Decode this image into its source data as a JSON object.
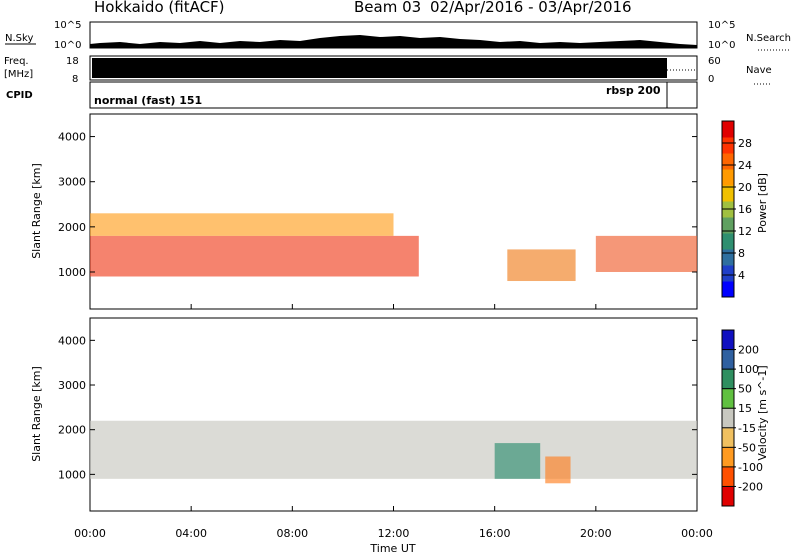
{
  "header": {
    "station": "Hokkaido (fitACF)",
    "beam": "Beam 03",
    "dates": "02/Apr/2016 - 03/Apr/2016"
  },
  "aux_panels": {
    "nsky_label": "N.Sky",
    "nsky_ticks": [
      "10^5",
      "10^0"
    ],
    "nsearch_label": "N.Search",
    "freq_label": "Freq.",
    "freq_unit": "[MHz]",
    "freq_ticks": [
      "18",
      "8"
    ],
    "nave_ticks": [
      "60",
      "0"
    ],
    "nave_label": "Nave",
    "cpid_label": "CPID",
    "cpid_left": "normal (fast) 151",
    "cpid_right": "rbsp 200"
  },
  "chart_data": [
    {
      "type": "heatmap",
      "title": "",
      "ylabel": "Slant Range [km]",
      "ylim": [
        180,
        4500
      ],
      "yticks": [
        "4000",
        "3000",
        "2000",
        "1000"
      ],
      "colorbar": {
        "label": "Power [dB]",
        "ticks": [
          "28",
          "24",
          "20",
          "16",
          "12",
          "8",
          "4"
        ],
        "colors": [
          "#0000ff",
          "#1f3fc8",
          "#2f6f9f",
          "#2f8f70",
          "#5fa060",
          "#a0c040",
          "#f0c000",
          "#ff9a00",
          "#ff6600",
          "#ff3300",
          "#e00000"
        ]
      },
      "bands": [
        {
          "start_hr": 0,
          "end_hr": 13,
          "from_km": 900,
          "to_km": 1800,
          "level": "high",
          "color": "#f04020"
        },
        {
          "start_hr": 0,
          "end_hr": 12,
          "from_km": 1800,
          "to_km": 2300,
          "level": "medium",
          "color": "#ffa020"
        },
        {
          "start_hr": 16.5,
          "end_hr": 19.2,
          "from_km": 800,
          "to_km": 1500,
          "level": "mixed",
          "color": "#f08020"
        },
        {
          "start_hr": 20,
          "end_hr": 24,
          "from_km": 1000,
          "to_km": 1800,
          "level": "medium",
          "color": "#f06030"
        }
      ]
    },
    {
      "type": "heatmap",
      "title": "",
      "ylabel": "Slant Range [km]",
      "ylim": [
        180,
        4500
      ],
      "yticks": [
        "4000",
        "3000",
        "2000",
        "1000"
      ],
      "xlabel": "Time UT",
      "xticks": [
        "00:00",
        "04:00",
        "08:00",
        "12:00",
        "16:00",
        "20:00",
        "00:00"
      ],
      "colorbar": {
        "label": "Velocity [m s^-1]",
        "ticks": [
          "200",
          "100",
          "50",
          "15",
          "-15",
          "-50",
          "-100",
          "-200"
        ],
        "colors": [
          "#e00000",
          "#ff5000",
          "#ff9a20",
          "#f0c060",
          "#c8c8c0",
          "#60c040",
          "#2f8f60",
          "#2f60a0",
          "#1010c0"
        ]
      },
      "bands": [
        {
          "start_hr": 0,
          "end_hr": 24,
          "from_km": 900,
          "to_km": 2200,
          "level": "near zero",
          "color": "#c8c8c0"
        },
        {
          "start_hr": 16,
          "end_hr": 17.8,
          "from_km": 900,
          "to_km": 1700,
          "level": "positive",
          "color": "#2f8f70"
        },
        {
          "start_hr": 18,
          "end_hr": 19,
          "from_km": 800,
          "to_km": 1400,
          "level": "negative",
          "color": "#ff8020"
        }
      ]
    }
  ]
}
